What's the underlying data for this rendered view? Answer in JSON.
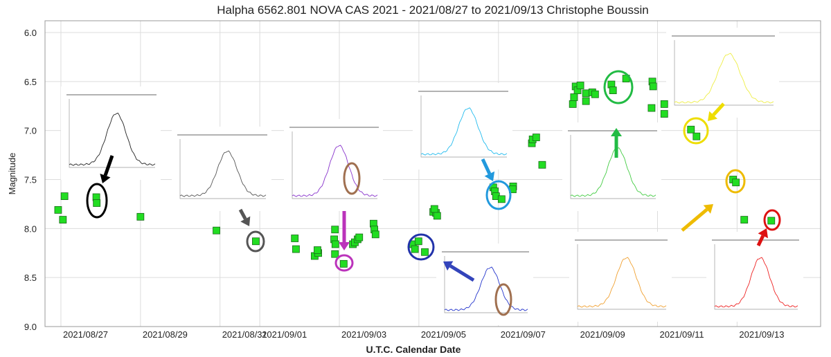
{
  "chart_data": {
    "type": "scatter",
    "title": "Halpha 6562.801   NOVA CAS 2021 - 2021/08/27 to 2021/09/13   Christophe Boussin",
    "x_label": "U.T.C. Calendar Date",
    "y_label": "Magnitude",
    "color": "#22dd22",
    "grid": true,
    "x": [
      2459453.43,
      2459453.55,
      2459453.59,
      2459454.39,
      2459454.4,
      2459455.5,
      2459457.41,
      2459458.4,
      2459459.38,
      2459459.41,
      2459459.88,
      2459459.97,
      2459459.95,
      2459460.39,
      2459460.37,
      2459460.4,
      2459460.39,
      2459460.61,
      2459460.84,
      2459460.89,
      2459460.96,
      2459461.0,
      2459461.36,
      2459461.38,
      2459461.41,
      2459462.35,
      2459462.4,
      2459462.49,
      2459462.65,
      2459462.86,
      2459462.93,
      2459462.96,
      2459462.89,
      2459464.37,
      2459464.41,
      2459464.44,
      2459464.58,
      2459464.87,
      2459464.86,
      2459465.34,
      2459465.36,
      2459465.45,
      2459465.6,
      2459466.37,
      2459466.4,
      2459466.44,
      2459466.49,
      2459466.56,
      2459466.7,
      2459466.7,
      2459466.86,
      2459466.93,
      2459467.34,
      2459467.38,
      2459467.71,
      2459468.37,
      2459468.39,
      2459468.35,
      2459468.67,
      2459468.67,
      2459469.34,
      2459469.48,
      2459470.4,
      2459470.47,
      2459470.68,
      2459471.36
    ],
    "values": [
      7.81,
      7.91,
      7.67,
      7.68,
      7.74,
      7.88,
      8.02,
      8.13,
      8.1,
      8.21,
      8.28,
      8.25,
      8.22,
      8.01,
      8.11,
      8.16,
      8.26,
      8.36,
      8.16,
      8.14,
      8.11,
      8.09,
      7.95,
      8.01,
      8.06,
      8.16,
      8.21,
      8.13,
      8.24,
      7.83,
      7.84,
      7.87,
      7.8,
      7.58,
      7.62,
      7.67,
      7.7,
      7.57,
      7.6,
      7.13,
      7.09,
      7.07,
      7.35,
      6.73,
      6.66,
      6.55,
      6.59,
      6.54,
      6.7,
      6.62,
      6.61,
      6.63,
      6.53,
      6.59,
      6.47,
      6.5,
      6.55,
      6.77,
      6.73,
      6.83,
      6.99,
      7.06,
      7.5,
      7.53,
      7.91,
      7.92
    ],
    "xlim": [
      2459453.1,
      2459472.6
    ],
    "xticks": [
      {
        "value": 2459453.5,
        "label": "2021/08/27"
      },
      {
        "value": 2459455.5,
        "label": "2021/08/29"
      },
      {
        "value": 2459457.5,
        "label": "2021/08/31"
      },
      {
        "value": 2459458.5,
        "label": "2021/09/01"
      },
      {
        "value": 2459460.5,
        "label": "2021/09/03"
      },
      {
        "value": 2459462.5,
        "label": "2021/09/05"
      },
      {
        "value": 2459464.5,
        "label": "2021/09/07"
      },
      {
        "value": 2459466.5,
        "label": "2021/09/09"
      },
      {
        "value": 2459468.5,
        "label": "2021/09/11"
      },
      {
        "value": 2459470.5,
        "label": "2021/09/13"
      }
    ],
    "ylim": [
      9.0,
      5.88
    ],
    "yticks": [
      {
        "value": 6,
        "label": "6.0"
      },
      {
        "value": 6.5,
        "label": "6.5"
      },
      {
        "value": 7,
        "label": "7.0"
      },
      {
        "value": 7.5,
        "label": "7.5"
      },
      {
        "value": 8,
        "label": "8.0"
      },
      {
        "value": 8.5,
        "label": "8.5"
      },
      {
        "value": 9,
        "label": "9.0"
      }
    ]
  }
}
